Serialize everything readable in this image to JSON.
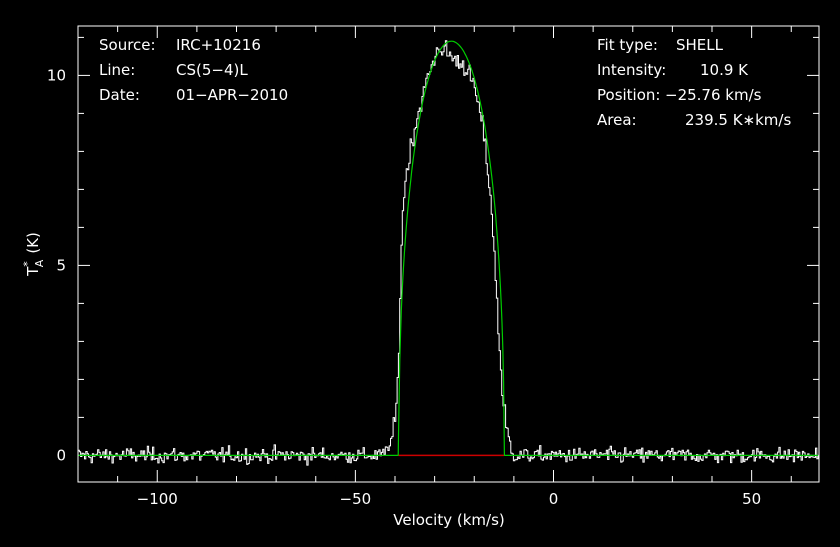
{
  "chart_data": {
    "type": "line",
    "xlabel": "Velocity (km/s)",
    "ylabel": "T",
    "ylabel_sub": "A",
    "ylabel_sup": "*",
    "ylabel_unit": "(K)",
    "xlim": [
      -120,
      67
    ],
    "ylim": [
      -0.7,
      11.3
    ],
    "xticks_major": [
      -100,
      -50,
      0,
      50
    ],
    "xtick_labels": [
      "−100",
      "−50",
      "0",
      "50"
    ],
    "yticks_major": [
      0,
      5,
      10
    ],
    "ytick_labels": [
      "0",
      "5",
      "10"
    ],
    "grid": false,
    "colors": {
      "background": "#000000",
      "spectrum": "#ffffff",
      "fit": "#00cc00",
      "baseline_window": "#cc0000",
      "axes": "#ffffff"
    },
    "info_left": [
      {
        "key": "Source:",
        "value": "IRC+10216"
      },
      {
        "key": "Line:",
        "value": "CS(5−4)L"
      },
      {
        "key": "Date:",
        "value": "01−APR−2010"
      }
    ],
    "info_right": [
      {
        "key": "Fit type:",
        "value": "SHELL"
      },
      {
        "key": "Intensity:",
        "value": "10.9 K"
      },
      {
        "key": "Position:",
        "value": "−25.76 km/s"
      },
      {
        "key": "Area:",
        "value": "239.5 K∗km/s"
      }
    ],
    "fit": {
      "center": -25.76,
      "peak": 10.9,
      "half_width": 13.3,
      "horn_ratio": 0.6,
      "baseline_segment": [
        -39.1,
        -12.5
      ]
    },
    "spectrum": {
      "noise_rms": 0.1,
      "channel_width": 0.33,
      "profile_points": [
        [
          -120,
          0
        ],
        [
          -43,
          0
        ],
        [
          -41,
          0.4
        ],
        [
          -40,
          1.0
        ],
        [
          -39.5,
          1.8
        ],
        [
          -39,
          3.5
        ],
        [
          -38.5,
          5.5
        ],
        [
          -38,
          6.8
        ],
        [
          -37,
          7.6
        ],
        [
          -36,
          8.2
        ],
        [
          -35,
          8.7
        ],
        [
          -34,
          9.1
        ],
        [
          -33,
          9.5
        ],
        [
          -32,
          9.9
        ],
        [
          -31,
          10.2
        ],
        [
          -30,
          10.5
        ],
        [
          -29,
          10.8
        ],
        [
          -28,
          10.65
        ],
        [
          -27,
          10.6
        ],
        [
          -26,
          10.5
        ],
        [
          -25,
          10.4
        ],
        [
          -24,
          10.35
        ],
        [
          -23,
          10.3
        ],
        [
          -22,
          10.2
        ],
        [
          -21,
          9.9
        ],
        [
          -20,
          9.6
        ],
        [
          -19,
          9.2
        ],
        [
          -18,
          8.6
        ],
        [
          -17,
          7.8
        ],
        [
          -16,
          6.8
        ],
        [
          -15,
          5.2
        ],
        [
          -14,
          3.2
        ],
        [
          -13,
          1.6
        ],
        [
          -12,
          0.7
        ],
        [
          -11,
          0.2
        ],
        [
          -10,
          0
        ],
        [
          67,
          0
        ]
      ]
    }
  }
}
